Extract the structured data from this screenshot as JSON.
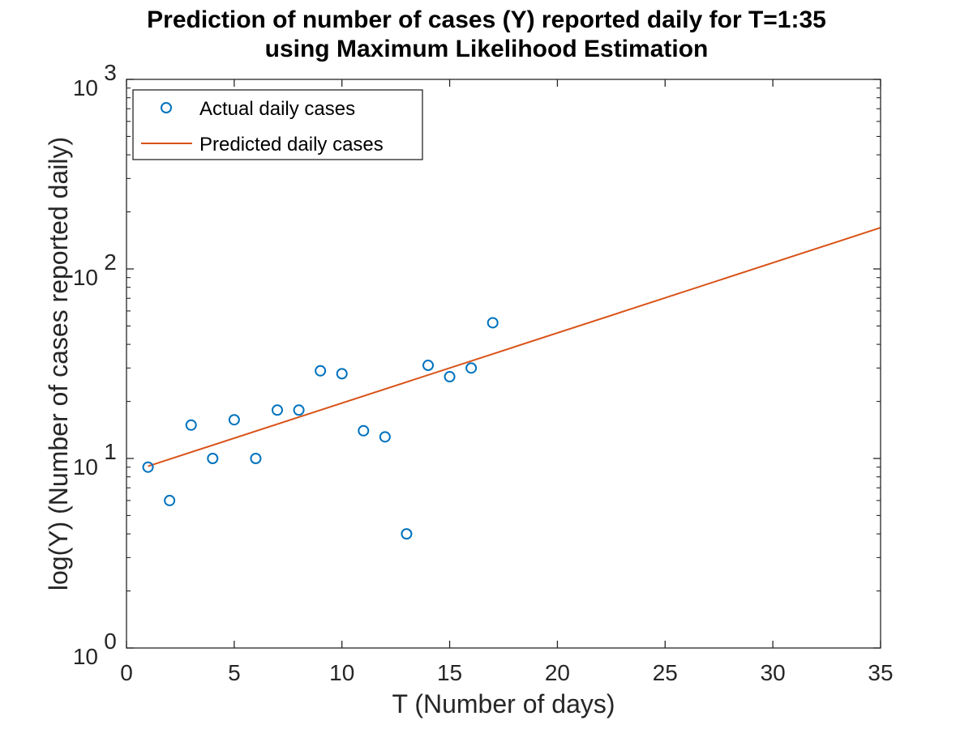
{
  "chart_data": {
    "type": "scatter",
    "title": [
      "Prediction of number of cases (Y) reported daily for T=1:35",
      "using Maximum Likelihood Estimation"
    ],
    "xlabel": "T (Number of days)",
    "ylabel": "log(Y) (Number of cases reported daily)",
    "xlim": [
      0,
      35
    ],
    "ylim": [
      1,
      1000
    ],
    "yscale": "log",
    "x_ticks": [
      0,
      5,
      10,
      15,
      20,
      25,
      30,
      35
    ],
    "x_tick_labels": [
      "0",
      "5",
      "10",
      "15",
      "20",
      "25",
      "30",
      "35"
    ],
    "y_ticks": [
      1,
      10,
      100,
      1000
    ],
    "y_tick_labels": [
      {
        "base": "10",
        "exp": "0"
      },
      {
        "base": "10",
        "exp": "1"
      },
      {
        "base": "10",
        "exp": "2"
      },
      {
        "base": "10",
        "exp": "3"
      }
    ],
    "grid": false,
    "legend_position": "top-left",
    "series": [
      {
        "name": "Actual daily cases",
        "kind": "markers",
        "marker": "circle",
        "color": "#0072BD",
        "x": [
          1,
          2,
          3,
          4,
          5,
          6,
          7,
          8,
          9,
          10,
          11,
          12,
          13,
          14,
          15,
          16,
          17
        ],
        "y": [
          9,
          6,
          15,
          10,
          16,
          10,
          18,
          18,
          29,
          28,
          14,
          13,
          4,
          31,
          27,
          30,
          52
        ]
      },
      {
        "name": "Predicted daily cases",
        "kind": "line",
        "color": "#D95319",
        "x": [
          1,
          35
        ],
        "y": [
          9.1,
          165
        ]
      }
    ]
  }
}
